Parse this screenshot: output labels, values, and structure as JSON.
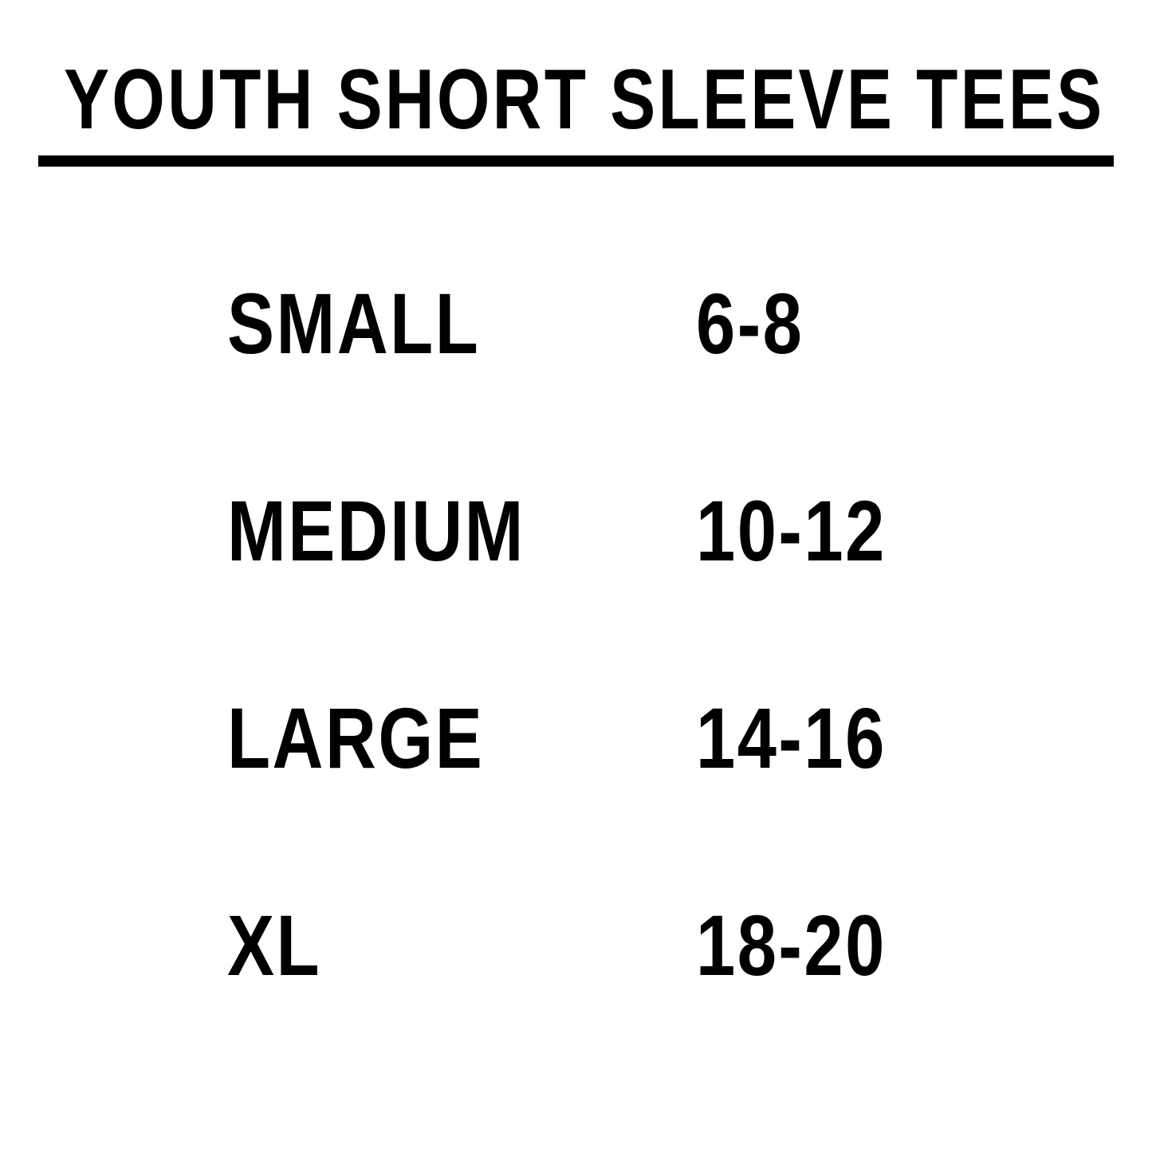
{
  "title": "YOUTH SHORT SLEEVE TEES",
  "sizes": [
    {
      "label": "SMALL",
      "range": "6-8"
    },
    {
      "label": "MEDIUM",
      "range": "10-12"
    },
    {
      "label": "LARGE",
      "range": "14-16"
    },
    {
      "label": "XL",
      "range": "18-20"
    }
  ]
}
